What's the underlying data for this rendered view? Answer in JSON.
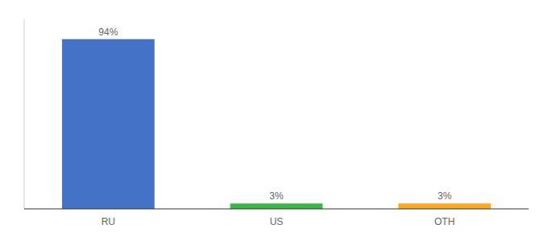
{
  "chart_data": {
    "type": "bar",
    "categories": [
      "RU",
      "US",
      "OTH"
    ],
    "values": [
      94,
      3,
      3
    ],
    "value_labels": [
      "94%",
      "3%",
      "3%"
    ],
    "data_labels": true,
    "colors": [
      "#4472c4",
      "#3cb54a",
      "#ffa726"
    ],
    "ylim": [
      0,
      105
    ],
    "tick_labels": "x"
  }
}
